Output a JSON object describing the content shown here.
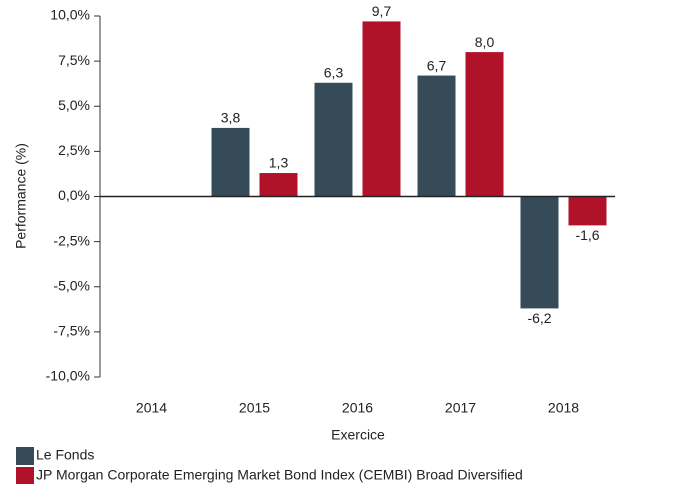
{
  "chart_data": {
    "type": "bar",
    "xlabel": "Exercice",
    "ylabel": "Performance (%)",
    "categories": [
      "2014",
      "2015",
      "2016",
      "2017",
      "2018"
    ],
    "series": [
      {
        "name": "Le Fonds",
        "color": "#364b58",
        "values": [
          null,
          3.8,
          6.3,
          6.7,
          -6.2
        ],
        "value_labels": [
          null,
          "3,8",
          "6,3",
          "6,7",
          "-6,2"
        ]
      },
      {
        "name": "JP Morgan Corporate Emerging Market Bond Index (CEMBI) Broad Diversified",
        "color": "#b0122a",
        "values": [
          null,
          1.3,
          9.7,
          8.0,
          -1.6
        ],
        "value_labels": [
          null,
          "1,3",
          "9,7",
          "8,0",
          "-1,6"
        ]
      }
    ],
    "ylim": [
      -10,
      10
    ],
    "yticks": [
      {
        "value": -10,
        "label": "-10,0%"
      },
      {
        "value": -7.5,
        "label": "-7,5%"
      },
      {
        "value": -5,
        "label": "-5,0%"
      },
      {
        "value": -2.5,
        "label": "-2,5%"
      },
      {
        "value": 0,
        "label": "0,0%"
      },
      {
        "value": 2.5,
        "label": "2,5%"
      },
      {
        "value": 5,
        "label": "5,0%"
      },
      {
        "value": 7.5,
        "label": "7,5%"
      },
      {
        "value": 10,
        "label": "10,0%"
      }
    ],
    "grid": false
  }
}
